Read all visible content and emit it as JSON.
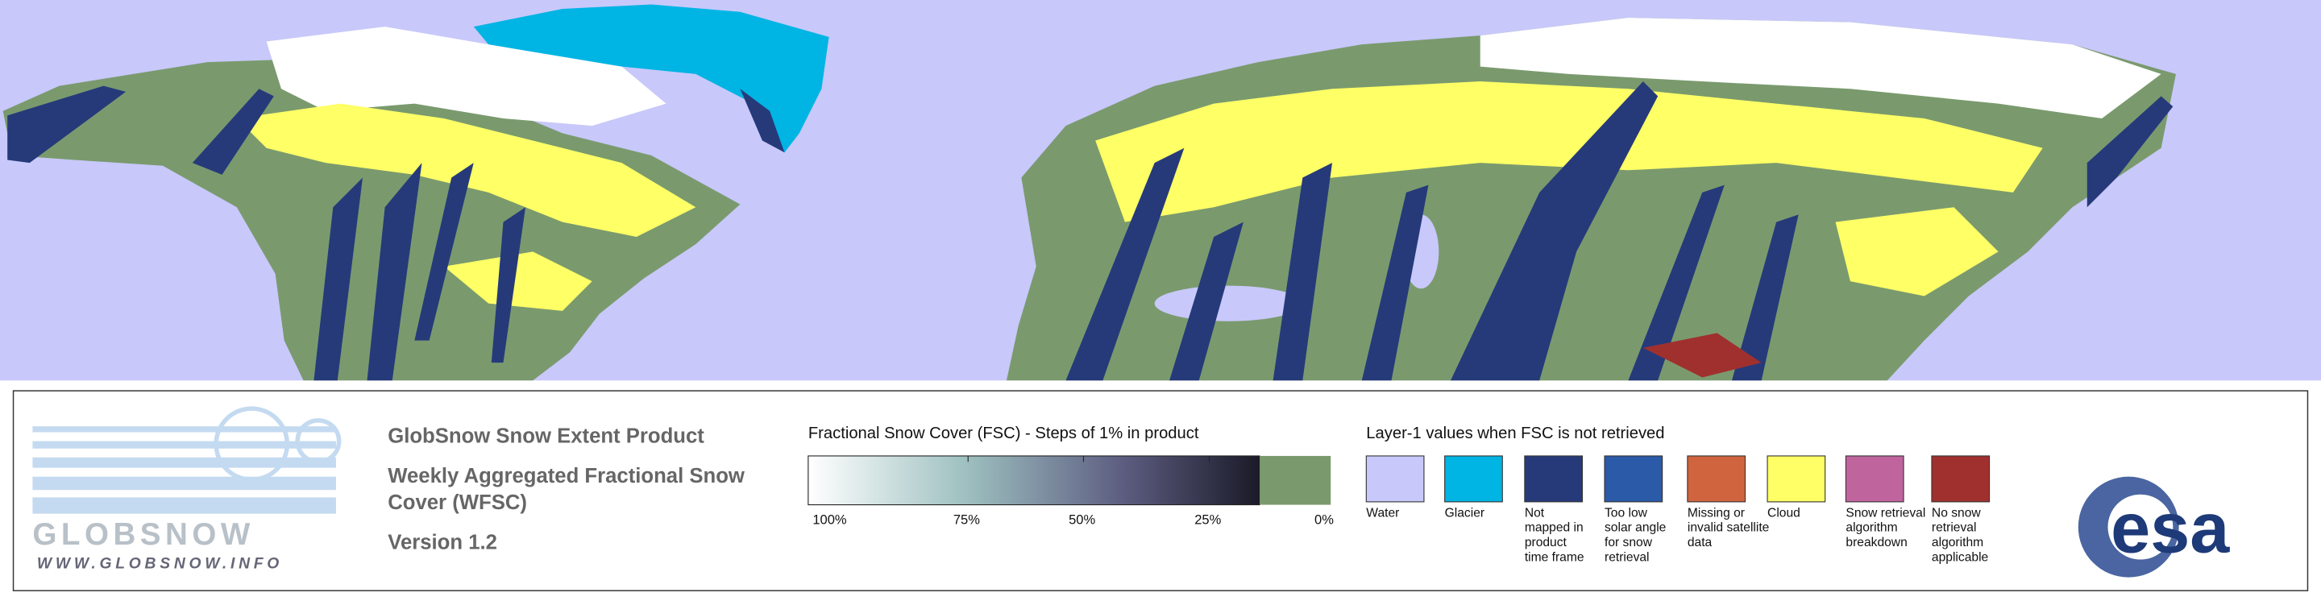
{
  "logo": {
    "name": "GLOBSNOW",
    "url": "WWW.GLOBSNOW.INFO"
  },
  "product": {
    "title": "GlobSnow Snow Extent Product",
    "subtitle_lines": [
      "Weekly Aggregated Fractional Snow",
      "Cover (WFSC)"
    ],
    "version": "Version 1.2"
  },
  "fsc_scale": {
    "title": "Fractional Snow Cover (FSC) - Steps of 1% in product",
    "labels": [
      "100%",
      "75%",
      "50%",
      "25%",
      "0%"
    ]
  },
  "layer1": {
    "title": "Layer-1 values when FSC is not retrieved",
    "items": [
      {
        "color": "#c8c8fa",
        "label_lines": [
          "Water"
        ]
      },
      {
        "color": "#00b4e4",
        "label_lines": [
          "Glacier"
        ]
      },
      {
        "color": "#263a7a",
        "label_lines": [
          "Not",
          "mapped in",
          "product",
          "time frame"
        ]
      },
      {
        "color": "#2a5aa8",
        "label_lines": [
          "Too low",
          "solar angle",
          "for snow",
          "retrieval"
        ]
      },
      {
        "color": "#d0643e",
        "label_lines": [
          "Missing or",
          "invalid satellite",
          "data"
        ]
      },
      {
        "color": "#ffff66",
        "label_lines": [
          "Cloud"
        ]
      },
      {
        "color": "#c0649e",
        "label_lines": [
          "Snow retrieval",
          "algorithm",
          "breakdown"
        ]
      },
      {
        "color": "#a0302e",
        "label_lines": [
          "No snow",
          "retrieval",
          "algorithm",
          "applicable"
        ]
      }
    ]
  },
  "agency": "esa"
}
